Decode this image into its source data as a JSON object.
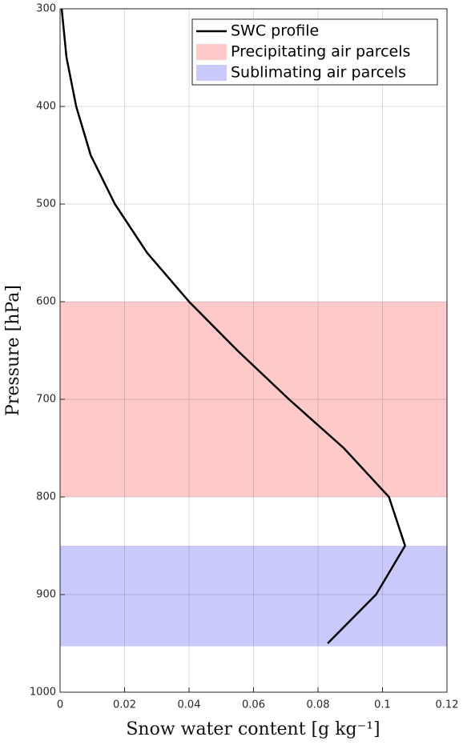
{
  "chart_data": {
    "type": "line",
    "xlabel": "Snow water content [g kg⁻¹]",
    "ylabel": "Pressure [hPa]",
    "xlim": [
      0,
      0.12
    ],
    "xticks": [
      0,
      0.02,
      0.04,
      0.06,
      0.08,
      0.1,
      0.12
    ],
    "ylim": [
      1000,
      300
    ],
    "yticks": [
      300,
      400,
      500,
      600,
      700,
      800,
      900,
      1000
    ],
    "y_inverted": true,
    "grid": true,
    "legend": "upper right",
    "bands": [
      {
        "name": "Precipitating air parcels",
        "color": "#fdc9c9",
        "range": [
          600,
          800
        ]
      },
      {
        "name": "Sublimating air parcels",
        "color": "#c9c9fb",
        "range": [
          850,
          953
        ]
      }
    ],
    "series": [
      {
        "name": "SWC profile",
        "color": "#000000",
        "x": [
          0.0005,
          0.002,
          0.005,
          0.0095,
          0.017,
          0.027,
          0.04,
          0.055,
          0.071,
          0.088,
          0.102,
          0.107,
          0.098,
          0.083
        ],
        "values": [
          300,
          350,
          400,
          450,
          500,
          550,
          600,
          650,
          700,
          750,
          800,
          850,
          900,
          950
        ]
      }
    ]
  }
}
